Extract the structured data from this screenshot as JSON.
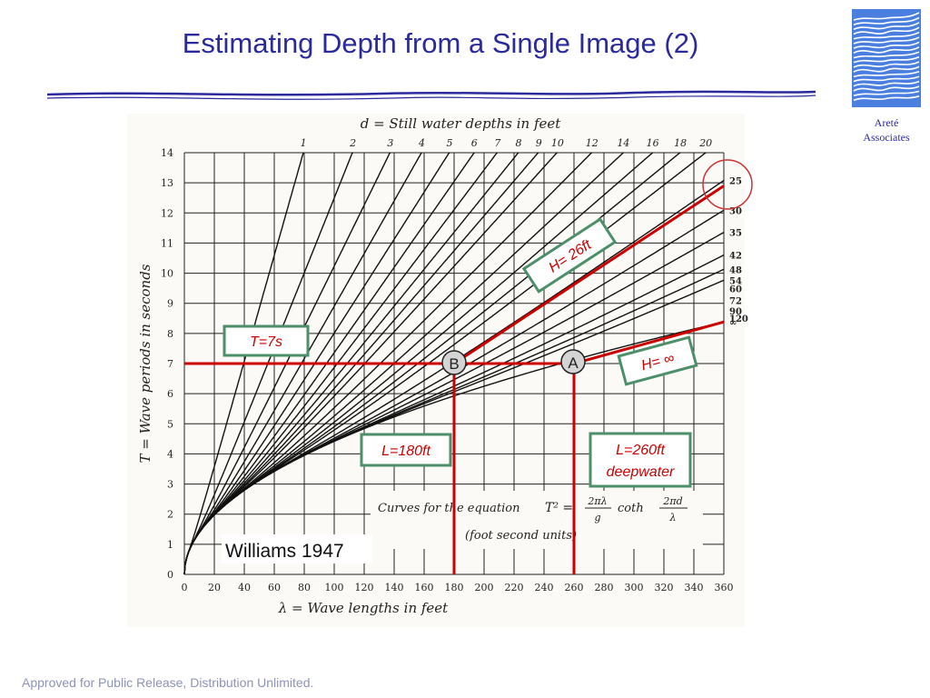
{
  "slide": {
    "title": "Estimating Depth from a Single Image (2)",
    "footer": "Approved for Public Release, Distribution Unlimited.",
    "logo": {
      "line1": "Areté",
      "line2": "Associates",
      "icon": "wave-lines-logo"
    },
    "colors": {
      "title": "#2a2a9c",
      "annotation": "#cc0000",
      "box_border": "#4d8f6a"
    }
  },
  "chart_data": {
    "type": "line",
    "title": "d = Still water depths in feet",
    "xlabel": "λ = Wave lengths in feet",
    "ylabel": "T = Wave periods in seconds",
    "equation_caption": "Curves for the equation",
    "equation_lhs": "T² =",
    "equation_num1": "2πλ",
    "equation_den1": "g",
    "equation_coth": "coth",
    "equation_num2": "2πd",
    "equation_den2": "λ",
    "units_note": "(foot second units)",
    "xlim": [
      0,
      360
    ],
    "ylim": [
      0,
      14
    ],
    "grid": true,
    "x_ticks": [
      "0",
      "20",
      "40",
      "60",
      "80",
      "100",
      "120",
      "140",
      "160",
      "180",
      "200",
      "220",
      "240",
      "260",
      "280",
      "300",
      "320",
      "340",
      "360"
    ],
    "y_ticks": [
      "0",
      "1",
      "2",
      "3",
      "4",
      "5",
      "6",
      "7",
      "8",
      "9",
      "10",
      "11",
      "12",
      "13",
      "14"
    ],
    "depth_top_labels": [
      "1",
      "2",
      "3",
      "4",
      "5",
      "6",
      "7",
      "8",
      "9",
      "10",
      "12",
      "14",
      "16",
      "18",
      "20"
    ],
    "depth_right_labels": [
      "25",
      "30",
      "35",
      "42",
      "48",
      "54",
      "60",
      "72",
      "90",
      "120",
      "∞"
    ],
    "series_depths_ft": [
      1,
      2,
      3,
      4,
      5,
      6,
      7,
      8,
      9,
      10,
      12,
      14,
      16,
      18,
      20,
      25,
      30,
      35,
      42,
      48,
      54,
      60,
      72,
      90,
      120,
      "∞"
    ],
    "annotations": {
      "period": "T=7s",
      "point_b": "B",
      "point_a": "A",
      "height_shallow": "H= 26ft",
      "height_deep": "H= ∞",
      "length_b": "L=180ft",
      "length_a_line1": "L=260ft",
      "length_a_line2": "deepwater",
      "credit": "Williams 1947"
    },
    "annotation_values": {
      "T_s": 7,
      "L_B_ft": 180,
      "L_A_ft": 260,
      "H_B_ft": 26
    }
  }
}
